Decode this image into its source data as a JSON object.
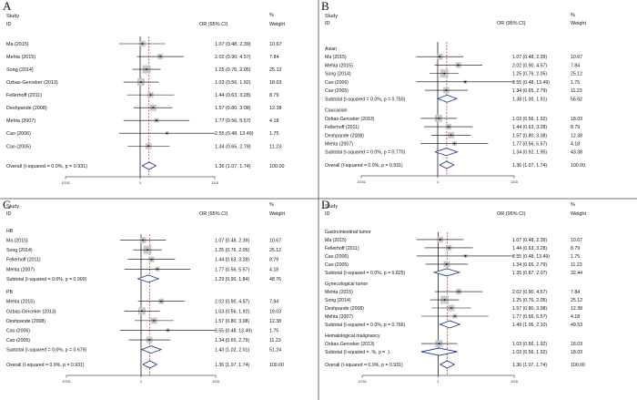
{
  "figure": {
    "panel_letters": [
      "A",
      "B",
      "C",
      "D"
    ]
  },
  "chart_data": [
    {
      "type": "forest",
      "panel": "A",
      "headers": {
        "study": "Study",
        "id": "ID",
        "or": "OR (95% CI)",
        "weight_top": "%",
        "weight": "Weight"
      },
      "axis": {
        "ticks": [
          0.0741,
          1,
          13.5
        ],
        "tick_labels": [
          ".0741",
          "1",
          "13.5"
        ],
        "scale": "log"
      },
      "rows": [
        {
          "kind": "study",
          "label": "Ma (2015)",
          "or": 1.07,
          "lo": 0.48,
          "hi": 2.39,
          "text": "1.07 (0.48, 2.39)",
          "weight": "10.67"
        },
        {
          "kind": "study",
          "label": "Mehta (2015)",
          "or": 2.02,
          "lo": 0.9,
          "hi": 4.57,
          "text": "2.02 (0.90, 4.57)",
          "weight": "7.84"
        },
        {
          "kind": "study",
          "label": "Song (2014)",
          "or": 1.25,
          "lo": 0.76,
          "hi": 2.05,
          "text": "1.25 (0.76, 2.05)",
          "weight": "25.12"
        },
        {
          "kind": "study",
          "label": "Ozbas-Gerceker (2013)",
          "or": 1.03,
          "lo": 0.56,
          "hi": 1.92,
          "text": "1.03 (0.56, 1.92)",
          "weight": "18.03"
        },
        {
          "kind": "study",
          "label": "Fellerhoff (2011)",
          "or": 1.44,
          "lo": 0.63,
          "hi": 3.28,
          "text": "1.44 (0.63, 3.28)",
          "weight": "8.79"
        },
        {
          "kind": "study",
          "label": "Deshpande (2008)",
          "or": 1.57,
          "lo": 0.8,
          "hi": 3.08,
          "text": "1.57 (0.80, 3.08)",
          "weight": "12.38"
        },
        {
          "kind": "study",
          "label": "Mehta (2007)",
          "or": 1.77,
          "lo": 0.56,
          "hi": 5.57,
          "text": "1.77 (0.56, 5.57)",
          "weight": "4.18"
        },
        {
          "kind": "study",
          "label": "Cao (2006)",
          "or": 2.55,
          "lo": 0.48,
          "hi": 13.49,
          "text": "2.55 (0.48, 13.49)",
          "weight": "1.75"
        },
        {
          "kind": "study",
          "label": "Cao (2005)",
          "or": 1.34,
          "lo": 0.65,
          "hi": 2.79,
          "text": "1.34 (0.65, 2.79)",
          "weight": "11.23"
        },
        {
          "kind": "overall",
          "label": "Overall  (I-squared = 0.0%, p = 0.931)",
          "or": 1.36,
          "lo": 1.07,
          "hi": 1.74,
          "text": "1.36 (1.07, 1.74)",
          "weight": "100.00"
        }
      ]
    },
    {
      "type": "forest",
      "panel": "B",
      "headers": {
        "study": "Study",
        "id": "ID",
        "or": "OR (95% CI)",
        "weight_top": "%",
        "weight": "Weight"
      },
      "axis": {
        "ticks": [
          0.0741,
          1,
          13.5
        ],
        "tick_labels": [
          ".0741",
          "1",
          "13.5"
        ],
        "scale": "log"
      },
      "rows": [
        {
          "kind": "group",
          "label": "Asian"
        },
        {
          "kind": "study",
          "label": "Ma (2015)",
          "or": 1.07,
          "lo": 0.48,
          "hi": 2.39,
          "text": "1.07 (0.48, 2.39)",
          "weight": "10.67"
        },
        {
          "kind": "study",
          "label": "Mehta (2015)",
          "or": 2.02,
          "lo": 0.9,
          "hi": 4.57,
          "text": "2.02 (0.90, 4.57)",
          "weight": "7.84"
        },
        {
          "kind": "study",
          "label": "Song (2014)",
          "or": 1.25,
          "lo": 0.76,
          "hi": 2.05,
          "text": "1.25 (0.76, 2.05)",
          "weight": "25.12"
        },
        {
          "kind": "study",
          "label": "Cao (2006)",
          "or": 2.55,
          "lo": 0.48,
          "hi": 13.49,
          "text": "2.55 (0.48, 13.49)",
          "weight": "1.75"
        },
        {
          "kind": "study",
          "label": "Cao (2005)",
          "or": 1.34,
          "lo": 0.65,
          "hi": 2.79,
          "text": "1.34 (0.65, 2.79)",
          "weight": "11.23"
        },
        {
          "kind": "subtotal",
          "label": "Subtotal  (I-squared = 0.0%, p = 0.750)",
          "or": 1.38,
          "lo": 1.0,
          "hi": 1.91,
          "text": "1.38 (1.00, 1.91)",
          "weight": "56.62"
        },
        {
          "kind": "group",
          "label": "Caucasian"
        },
        {
          "kind": "study",
          "label": "Ozbas-Gerceker (2013)",
          "or": 1.03,
          "lo": 0.56,
          "hi": 1.92,
          "text": "1.03 (0.56, 1.92)",
          "weight": "18.03"
        },
        {
          "kind": "study",
          "label": "Fellerhoff (2011)",
          "or": 1.44,
          "lo": 0.63,
          "hi": 3.28,
          "text": "1.44 (0.63, 3.28)",
          "weight": "8.79"
        },
        {
          "kind": "study",
          "label": "Deshpande (2008)",
          "or": 1.57,
          "lo": 0.8,
          "hi": 3.08,
          "text": "1.57 (0.80, 3.08)",
          "weight": "12.38"
        },
        {
          "kind": "study",
          "label": "Mehta (2007)",
          "or": 1.77,
          "lo": 0.56,
          "hi": 5.57,
          "text": "1.77 (0.56, 5.57)",
          "weight": "4.18"
        },
        {
          "kind": "subtotal",
          "label": "Subtotal  (I-squared = 0.0%, p = 0.770)",
          "or": 1.34,
          "lo": 0.92,
          "hi": 1.95,
          "text": "1.34 (0.92, 1.95)",
          "weight": "43.38"
        },
        {
          "kind": "overall",
          "label": "Overall  (I-squared = 0.0%, p = 0.931)",
          "or": 1.36,
          "lo": 1.07,
          "hi": 1.74,
          "text": "1.36 (1.07, 1.74)",
          "weight": "100.00"
        }
      ]
    },
    {
      "type": "forest",
      "panel": "C",
      "headers": {
        "study": "Study",
        "id": "ID",
        "or": "OR (95% CI)",
        "weight_top": "%",
        "weight": "Weight"
      },
      "axis": {
        "ticks": [
          0.0741,
          1,
          13.5
        ],
        "tick_labels": [
          ".0741",
          "1",
          "13.5"
        ],
        "scale": "log"
      },
      "rows": [
        {
          "kind": "group",
          "label": "HB"
        },
        {
          "kind": "study",
          "label": "Ma (2015)",
          "or": 1.07,
          "lo": 0.48,
          "hi": 2.39,
          "text": "1.07 (0.48, 2.39)",
          "weight": "10.67"
        },
        {
          "kind": "study",
          "label": "Song (2014)",
          "or": 1.25,
          "lo": 0.76,
          "hi": 2.05,
          "text": "1.25 (0.76, 2.05)",
          "weight": "25.12"
        },
        {
          "kind": "study",
          "label": "Fellerhoff (2011)",
          "or": 1.44,
          "lo": 0.63,
          "hi": 3.28,
          "text": "1.44 (0.63, 3.28)",
          "weight": "8.79"
        },
        {
          "kind": "study",
          "label": "Mehta (2007)",
          "or": 1.77,
          "lo": 0.56,
          "hi": 5.57,
          "text": "1.77 (0.56, 5.57)",
          "weight": "4.18"
        },
        {
          "kind": "subtotal",
          "label": "Subtotal  (I-squared = 0.0%, p = 0.900)",
          "or": 1.29,
          "lo": 0.9,
          "hi": 1.84,
          "text": "1.29 (0.90, 1.84)",
          "weight": "48.76"
        },
        {
          "kind": "group",
          "label": "PB"
        },
        {
          "kind": "study",
          "label": "Mehta (2015)",
          "or": 2.02,
          "lo": 0.9,
          "hi": 4.57,
          "text": "2.02 (0.90, 4.57)",
          "weight": "7.84"
        },
        {
          "kind": "study",
          "label": "Ozbas-Gerceker (2013)",
          "or": 1.03,
          "lo": 0.56,
          "hi": 1.92,
          "text": "1.03 (0.56, 1.92)",
          "weight": "18.03"
        },
        {
          "kind": "study",
          "label": "Deshpande (2008)",
          "or": 1.57,
          "lo": 0.8,
          "hi": 3.08,
          "text": "1.57 (0.80, 3.08)",
          "weight": "12.38"
        },
        {
          "kind": "study",
          "label": "Cao (2006)",
          "or": 2.55,
          "lo": 0.48,
          "hi": 13.49,
          "text": "2.55 (0.48, 13.49)",
          "weight": "1.75"
        },
        {
          "kind": "study",
          "label": "Cao (2005)",
          "or": 1.34,
          "lo": 0.65,
          "hi": 2.79,
          "text": "1.34 (0.65, 2.79)",
          "weight": "11.23"
        },
        {
          "kind": "subtotal",
          "label": "Subtotal  (I-squared = 0.0%, p = 0.679)",
          "or": 1.43,
          "lo": 1.02,
          "hi": 2.01,
          "text": "1.43 (1.02, 2.01)",
          "weight": "51.24"
        },
        {
          "kind": "overall",
          "label": "Overall  (I-squared = 0.0%, p = 0.931)",
          "or": 1.36,
          "lo": 1.07,
          "hi": 1.74,
          "text": "1.36 (1.07, 1.74)",
          "weight": "100.00"
        }
      ]
    },
    {
      "type": "forest",
      "panel": "D",
      "headers": {
        "study": "Study",
        "id": "ID",
        "or": "OR (95% CI)",
        "weight_top": "%",
        "weight": "Weight"
      },
      "axis": {
        "ticks": [
          0.0741,
          1,
          13.5
        ],
        "tick_labels": [
          ".0741",
          "1",
          "13.5"
        ],
        "scale": "log"
      },
      "rows": [
        {
          "kind": "group",
          "label": "Gastrointestinal tumor"
        },
        {
          "kind": "study",
          "label": "Ma (2015)",
          "or": 1.07,
          "lo": 0.48,
          "hi": 2.39,
          "text": "1.07 (0.48, 2.39)",
          "weight": "10.67"
        },
        {
          "kind": "study",
          "label": "Fellerhoff (2011)",
          "or": 1.44,
          "lo": 0.63,
          "hi": 3.28,
          "text": "1.44 (0.63, 3.28)",
          "weight": "8.79"
        },
        {
          "kind": "study",
          "label": "Cao (2006)",
          "or": 2.55,
          "lo": 0.48,
          "hi": 13.49,
          "text": "2.55 (0.48, 13.49)",
          "weight": "1.75"
        },
        {
          "kind": "study",
          "label": "Cao (2005)",
          "or": 1.34,
          "lo": 0.65,
          "hi": 2.79,
          "text": "1.34 (0.65, 2.79)",
          "weight": "11.23"
        },
        {
          "kind": "subtotal",
          "label": "Subtotal  (I-squared = 0.0%, p = 0.825)",
          "or": 1.35,
          "lo": 0.87,
          "hi": 2.07,
          "text": "1.35 (0.87, 2.07)",
          "weight": "32.44"
        },
        {
          "kind": "group",
          "label": "Gynecological tumor"
        },
        {
          "kind": "study",
          "label": "Mehta (2015)",
          "or": 2.02,
          "lo": 0.9,
          "hi": 4.57,
          "text": "2.02 (0.90, 4.57)",
          "weight": "7.84"
        },
        {
          "kind": "study",
          "label": "Song (2014)",
          "or": 1.25,
          "lo": 0.76,
          "hi": 2.05,
          "text": "1.25 (0.76, 2.05)",
          "weight": "25.12"
        },
        {
          "kind": "study",
          "label": "Deshpande (2008)",
          "or": 1.57,
          "lo": 0.8,
          "hi": 3.08,
          "text": "1.57 (0.80, 3.08)",
          "weight": "12.38"
        },
        {
          "kind": "study",
          "label": "Mehta (2007)",
          "or": 1.77,
          "lo": 0.56,
          "hi": 5.57,
          "text": "1.77 (0.56, 5.57)",
          "weight": "4.18"
        },
        {
          "kind": "subtotal",
          "label": "Subtotal  (I-squared = 0.0%, p = 0.766)",
          "or": 1.49,
          "lo": 1.06,
          "hi": 2.1,
          "text": "1.49 (1.06, 2.10)",
          "weight": "49.53"
        },
        {
          "kind": "group",
          "label": "Hematological malignancy"
        },
        {
          "kind": "study",
          "label": "Ozbas-Gerceker (2013)",
          "or": 1.03,
          "lo": 0.56,
          "hi": 1.92,
          "text": "1.03 (0.56, 1.92)",
          "weight": "18.03"
        },
        {
          "kind": "subtotal",
          "label": "Subtotal  (I-squared = .%, p = .)",
          "or": 1.03,
          "lo": 0.56,
          "hi": 1.92,
          "text": "1.03 (0.56, 1.92)",
          "weight": "18.03"
        },
        {
          "kind": "overall",
          "label": "Overall  (I-squared = 0.0%, p = 0.931)",
          "or": 1.36,
          "lo": 1.07,
          "hi": 1.74,
          "text": "1.36 (1.07, 1.74)",
          "weight": "100.00"
        }
      ]
    }
  ]
}
